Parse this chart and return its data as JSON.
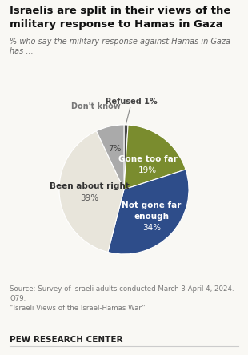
{
  "title": "Israelis are split in their views of the military response to Hamas in Gaza",
  "subtitle": "% who say the military response against Hamas in Gaza\nhas ...",
  "ordered_values": [
    1,
    19,
    34,
    39,
    7
  ],
  "ordered_colors": [
    "#4a4a4a",
    "#7a8c2e",
    "#2e4d8a",
    "#e8e5db",
    "#aaaaaa"
  ],
  "source_text": "Source: Survey of Israeli adults conducted March 3-April 4, 2024.\nQ79.\n“Israeli Views of the Israel-Hamas War”",
  "footer": "PEW RESEARCH CENTER",
  "bg_color": "#f9f8f4",
  "title_color": "#111111",
  "subtitle_color": "#666666"
}
